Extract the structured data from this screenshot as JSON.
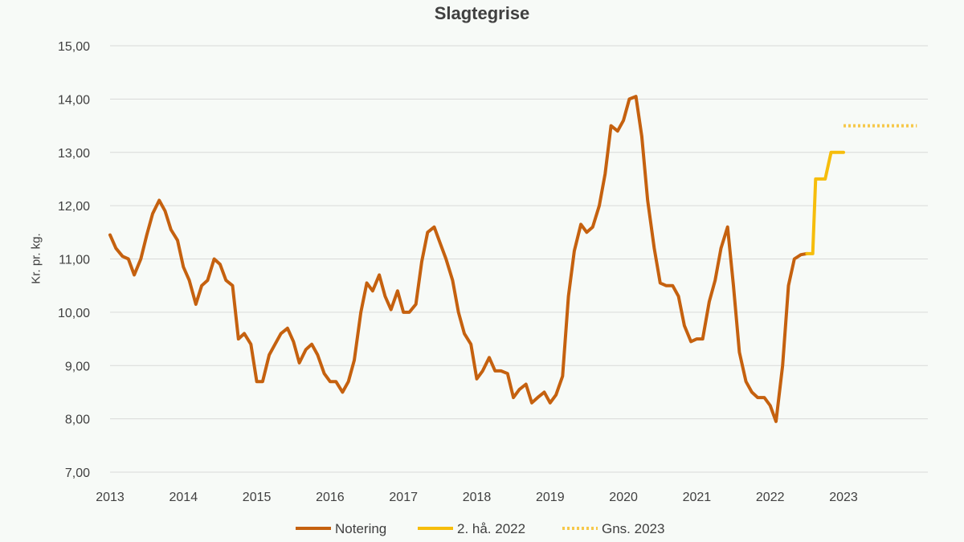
{
  "chart_data": {
    "type": "line",
    "title": "Slagtegrise",
    "xlabel": "",
    "ylabel": "Kr. pr. kg.",
    "ylim": [
      7,
      15
    ],
    "xlim": [
      2013,
      2024
    ],
    "y_ticks": [
      "7,00",
      "8,00",
      "9,00",
      "10,00",
      "11,00",
      "12,00",
      "13,00",
      "14,00",
      "15,00"
    ],
    "x_ticks": [
      "2013",
      "2014",
      "2015",
      "2016",
      "2017",
      "2018",
      "2019",
      "2020",
      "2021",
      "2022",
      "2023"
    ],
    "grid": true,
    "legend_position": "bottom",
    "series": [
      {
        "name": "Notering",
        "color": "#c5610f",
        "style": "solid",
        "x": [
          2013.0,
          2013.08,
          2013.17,
          2013.25,
          2013.33,
          2013.42,
          2013.5,
          2013.58,
          2013.67,
          2013.75,
          2013.83,
          2013.92,
          2014.0,
          2014.08,
          2014.17,
          2014.25,
          2014.33,
          2014.42,
          2014.5,
          2014.58,
          2014.67,
          2014.75,
          2014.83,
          2014.92,
          2015.0,
          2015.08,
          2015.17,
          2015.25,
          2015.33,
          2015.42,
          2015.5,
          2015.58,
          2015.67,
          2015.75,
          2015.83,
          2015.92,
          2016.0,
          2016.08,
          2016.17,
          2016.25,
          2016.33,
          2016.42,
          2016.5,
          2016.58,
          2016.67,
          2016.75,
          2016.83,
          2016.92,
          2017.0,
          2017.08,
          2017.17,
          2017.25,
          2017.33,
          2017.42,
          2017.5,
          2017.58,
          2017.67,
          2017.75,
          2017.83,
          2017.92,
          2018.0,
          2018.08,
          2018.17,
          2018.25,
          2018.33,
          2018.42,
          2018.5,
          2018.58,
          2018.67,
          2018.75,
          2018.83,
          2018.92,
          2019.0,
          2019.08,
          2019.17,
          2019.25,
          2019.33,
          2019.42,
          2019.5,
          2019.58,
          2019.67,
          2019.75,
          2019.83,
          2019.92,
          2020.0,
          2020.08,
          2020.17,
          2020.25,
          2020.33,
          2020.42,
          2020.5,
          2020.58,
          2020.67,
          2020.75,
          2020.83,
          2020.92,
          2021.0,
          2021.08,
          2021.17,
          2021.25,
          2021.33,
          2021.42,
          2021.5,
          2021.58,
          2021.67,
          2021.75,
          2021.83,
          2021.92,
          2022.0,
          2022.08,
          2022.17,
          2022.25,
          2022.33,
          2022.42,
          2022.5
        ],
        "values": [
          11.45,
          11.2,
          11.05,
          11.0,
          10.7,
          11.0,
          11.45,
          11.85,
          12.1,
          11.9,
          11.55,
          11.35,
          10.85,
          10.6,
          10.15,
          10.5,
          10.6,
          11.0,
          10.9,
          10.6,
          10.5,
          9.5,
          9.6,
          9.4,
          8.7,
          8.7,
          9.2,
          9.4,
          9.6,
          9.7,
          9.45,
          9.05,
          9.3,
          9.4,
          9.2,
          8.85,
          8.7,
          8.7,
          8.5,
          8.7,
          9.1,
          10.0,
          10.55,
          10.4,
          10.7,
          10.3,
          10.05,
          10.4,
          10.0,
          10.0,
          10.15,
          10.95,
          11.5,
          11.6,
          11.3,
          11.0,
          10.6,
          10.0,
          9.6,
          9.4,
          8.75,
          8.9,
          9.15,
          8.9,
          8.9,
          8.85,
          8.4,
          8.55,
          8.65,
          8.3,
          8.4,
          8.5,
          8.3,
          8.45,
          8.8,
          10.3,
          11.15,
          11.65,
          11.5,
          11.6,
          12.0,
          12.6,
          13.5,
          13.4,
          13.6,
          14.0,
          14.05,
          13.3,
          12.1,
          11.2,
          10.55,
          10.5,
          10.5,
          10.3,
          9.75,
          9.45,
          9.5,
          9.5,
          10.2,
          10.6,
          11.2,
          11.6,
          10.5,
          9.25,
          8.7,
          8.5,
          8.4,
          8.4,
          8.25,
          7.95,
          9.0,
          10.5,
          11.0,
          11.08,
          11.1
        ]
      },
      {
        "name": "2. hå. 2022",
        "color": "#f6bd0c",
        "style": "solid",
        "x": [
          2022.5,
          2022.58,
          2022.62,
          2022.67,
          2022.75,
          2022.83,
          2022.92,
          2023.0
        ],
        "values": [
          11.1,
          11.1,
          12.5,
          12.5,
          12.5,
          13.0,
          13.0,
          13.0
        ]
      },
      {
        "name": "Gns. 2023",
        "color": "#f6c84a",
        "style": "dotted",
        "x": [
          2023.0,
          2024.0
        ],
        "values": [
          13.5,
          13.5
        ]
      }
    ]
  }
}
